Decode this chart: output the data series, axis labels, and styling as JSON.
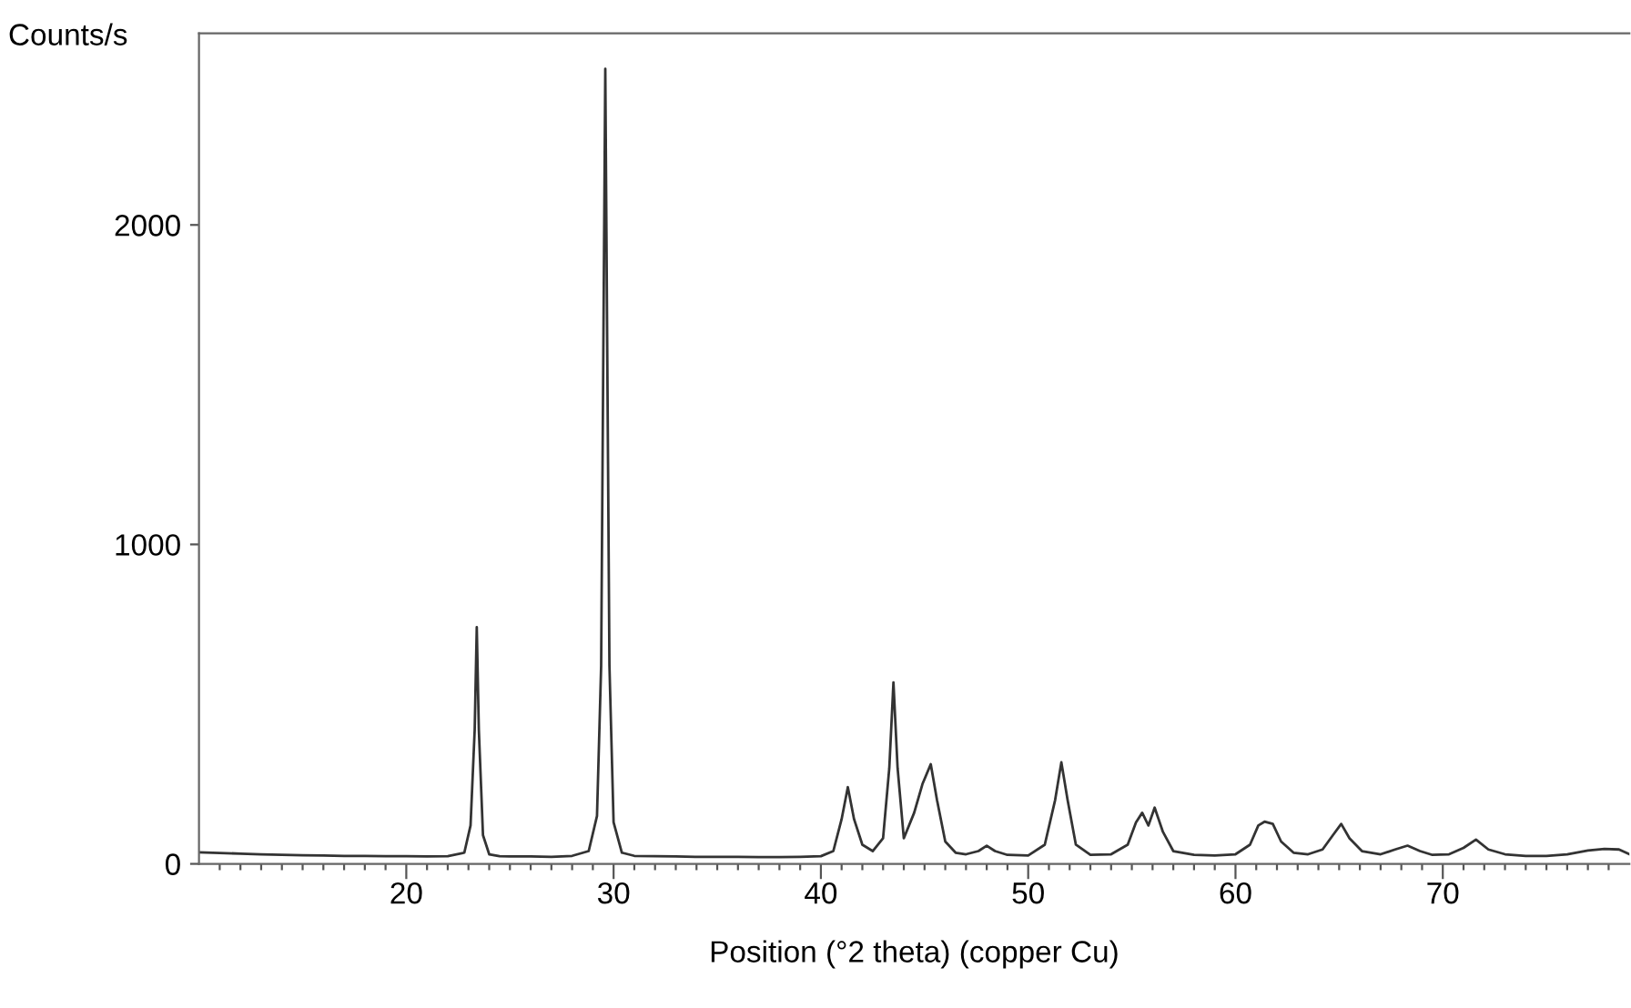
{
  "chart_data": {
    "type": "line",
    "ylabel": "Counts/s",
    "xlabel": "Position (°2 theta) (copper Cu)",
    "xlim": [
      10,
      79
    ],
    "ylim": [
      0,
      2600
    ],
    "yticks": [
      0,
      1000,
      2000
    ],
    "xticks": [
      {
        "value": 11,
        "label": null
      },
      {
        "value": 12,
        "label": null
      },
      {
        "value": 13,
        "label": null
      },
      {
        "value": 14,
        "label": null
      },
      {
        "value": 15,
        "label": null
      },
      {
        "value": 16,
        "label": null
      },
      {
        "value": 17,
        "label": null
      },
      {
        "value": 18,
        "label": null
      },
      {
        "value": 19,
        "label": null
      },
      20,
      {
        "value": 21,
        "label": null
      },
      {
        "value": 22,
        "label": null
      },
      {
        "value": 23,
        "label": null
      },
      {
        "value": 24,
        "label": null
      },
      {
        "value": 25,
        "label": null
      },
      {
        "value": 26,
        "label": null
      },
      {
        "value": 27,
        "label": null
      },
      {
        "value": 28,
        "label": null
      },
      {
        "value": 29,
        "label": null
      },
      30,
      {
        "value": 31,
        "label": null
      },
      {
        "value": 32,
        "label": null
      },
      {
        "value": 33,
        "label": null
      },
      {
        "value": 34,
        "label": null
      },
      {
        "value": 35,
        "label": null
      },
      {
        "value": 36,
        "label": null
      },
      {
        "value": 37,
        "label": null
      },
      {
        "value": 38,
        "label": null
      },
      {
        "value": 39,
        "label": null
      },
      40,
      {
        "value": 41,
        "label": null
      },
      {
        "value": 42,
        "label": null
      },
      {
        "value": 43,
        "label": null
      },
      {
        "value": 44,
        "label": null
      },
      {
        "value": 45,
        "label": null
      },
      {
        "value": 46,
        "label": null
      },
      {
        "value": 47,
        "label": null
      },
      {
        "value": 48,
        "label": null
      },
      {
        "value": 49,
        "label": null
      },
      50,
      {
        "value": 51,
        "label": null
      },
      {
        "value": 52,
        "label": null
      },
      {
        "value": 53,
        "label": null
      },
      {
        "value": 54,
        "label": null
      },
      {
        "value": 55,
        "label": null
      },
      {
        "value": 56,
        "label": null
      },
      {
        "value": 57,
        "label": null
      },
      {
        "value": 58,
        "label": null
      },
      {
        "value": 59,
        "label": null
      },
      60,
      {
        "value": 61,
        "label": null
      },
      {
        "value": 62,
        "label": null
      },
      {
        "value": 63,
        "label": null
      },
      {
        "value": 64,
        "label": null
      },
      {
        "value": 65,
        "label": null
      },
      {
        "value": 66,
        "label": null
      },
      {
        "value": 67,
        "label": null
      },
      {
        "value": 68,
        "label": null
      },
      {
        "value": 69,
        "label": null
      },
      70,
      {
        "value": 71,
        "label": null
      },
      {
        "value": 72,
        "label": null
      },
      {
        "value": 73,
        "label": null
      },
      {
        "value": 74,
        "label": null
      },
      {
        "value": 75,
        "label": null
      },
      {
        "value": 76,
        "label": null
      },
      {
        "value": 77,
        "label": null
      },
      {
        "value": 78,
        "label": null
      }
    ],
    "grid": false,
    "legend": false,
    "marker": "none",
    "line_style": "solid",
    "series": [
      {
        "color": "#333333",
        "x": [
          10,
          11,
          12,
          13,
          14,
          15,
          16,
          17,
          18,
          19,
          20,
          21,
          22,
          22.8,
          23.1,
          23.3,
          23.4,
          23.5,
          23.7,
          24.0,
          24.5,
          25,
          26,
          27,
          28,
          28.8,
          29.2,
          29.4,
          29.6,
          29.8,
          30.0,
          30.4,
          31,
          32,
          33,
          34,
          35,
          36,
          37,
          38,
          39,
          40,
          40.6,
          41.0,
          41.3,
          41.6,
          42.0,
          42.5,
          43.0,
          43.3,
          43.5,
          43.7,
          44.0,
          44.5,
          44.9,
          45.3,
          45.6,
          46.0,
          46.5,
          47.0,
          47.6,
          48.0,
          48.4,
          49,
          50,
          50.8,
          51.3,
          51.6,
          51.9,
          52.3,
          53,
          54,
          54.8,
          55.2,
          55.5,
          55.8,
          56.1,
          56.5,
          57,
          58,
          59,
          60,
          60.7,
          61.1,
          61.4,
          61.8,
          62.2,
          62.8,
          63.5,
          64.2,
          64.7,
          65.1,
          65.5,
          66.1,
          67,
          67.7,
          68.3,
          68.9,
          69.5,
          70.3,
          71.0,
          71.6,
          72.2,
          73,
          74,
          75,
          76,
          77,
          77.8,
          78.5,
          79
        ],
        "values": [
          36,
          34,
          32,
          30,
          28,
          27,
          26,
          25,
          25,
          24,
          24,
          23,
          24,
          35,
          120,
          420,
          741,
          420,
          90,
          30,
          24,
          23,
          23,
          22,
          25,
          40,
          150,
          620,
          2489,
          620,
          130,
          35,
          25,
          24,
          23,
          22,
          22,
          22,
          21,
          21,
          22,
          24,
          40,
          140,
          240,
          140,
          60,
          40,
          80,
          300,
          568,
          300,
          80,
          160,
          250,
          312,
          200,
          70,
          35,
          30,
          40,
          57,
          40,
          28,
          26,
          60,
          200,
          318,
          200,
          60,
          28,
          30,
          60,
          130,
          160,
          120,
          176,
          100,
          40,
          28,
          26,
          30,
          60,
          120,
          132,
          125,
          70,
          35,
          30,
          45,
          90,
          125,
          80,
          40,
          30,
          45,
          57,
          40,
          28,
          30,
          50,
          76,
          45,
          30,
          25,
          25,
          30,
          42,
          47,
          45,
          30
        ]
      }
    ]
  }
}
